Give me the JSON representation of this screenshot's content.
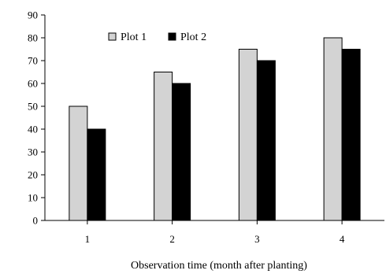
{
  "chart_data": {
    "type": "bar",
    "title": "",
    "xlabel": "Observation time (month after planting)",
    "ylabel": "",
    "categories": [
      "1",
      "2",
      "3",
      "4"
    ],
    "series": [
      {
        "name": "Plot 1",
        "values": [
          50,
          65,
          75,
          80
        ],
        "color": "#d3d3d3"
      },
      {
        "name": "Plot 2",
        "values": [
          40,
          60,
          70,
          75
        ],
        "color": "#000000"
      }
    ],
    "ylim": [
      0,
      90
    ],
    "yticks": [
      0,
      10,
      20,
      30,
      40,
      50,
      60,
      70,
      80,
      90
    ],
    "grid": false,
    "legend_position": "top-left"
  }
}
